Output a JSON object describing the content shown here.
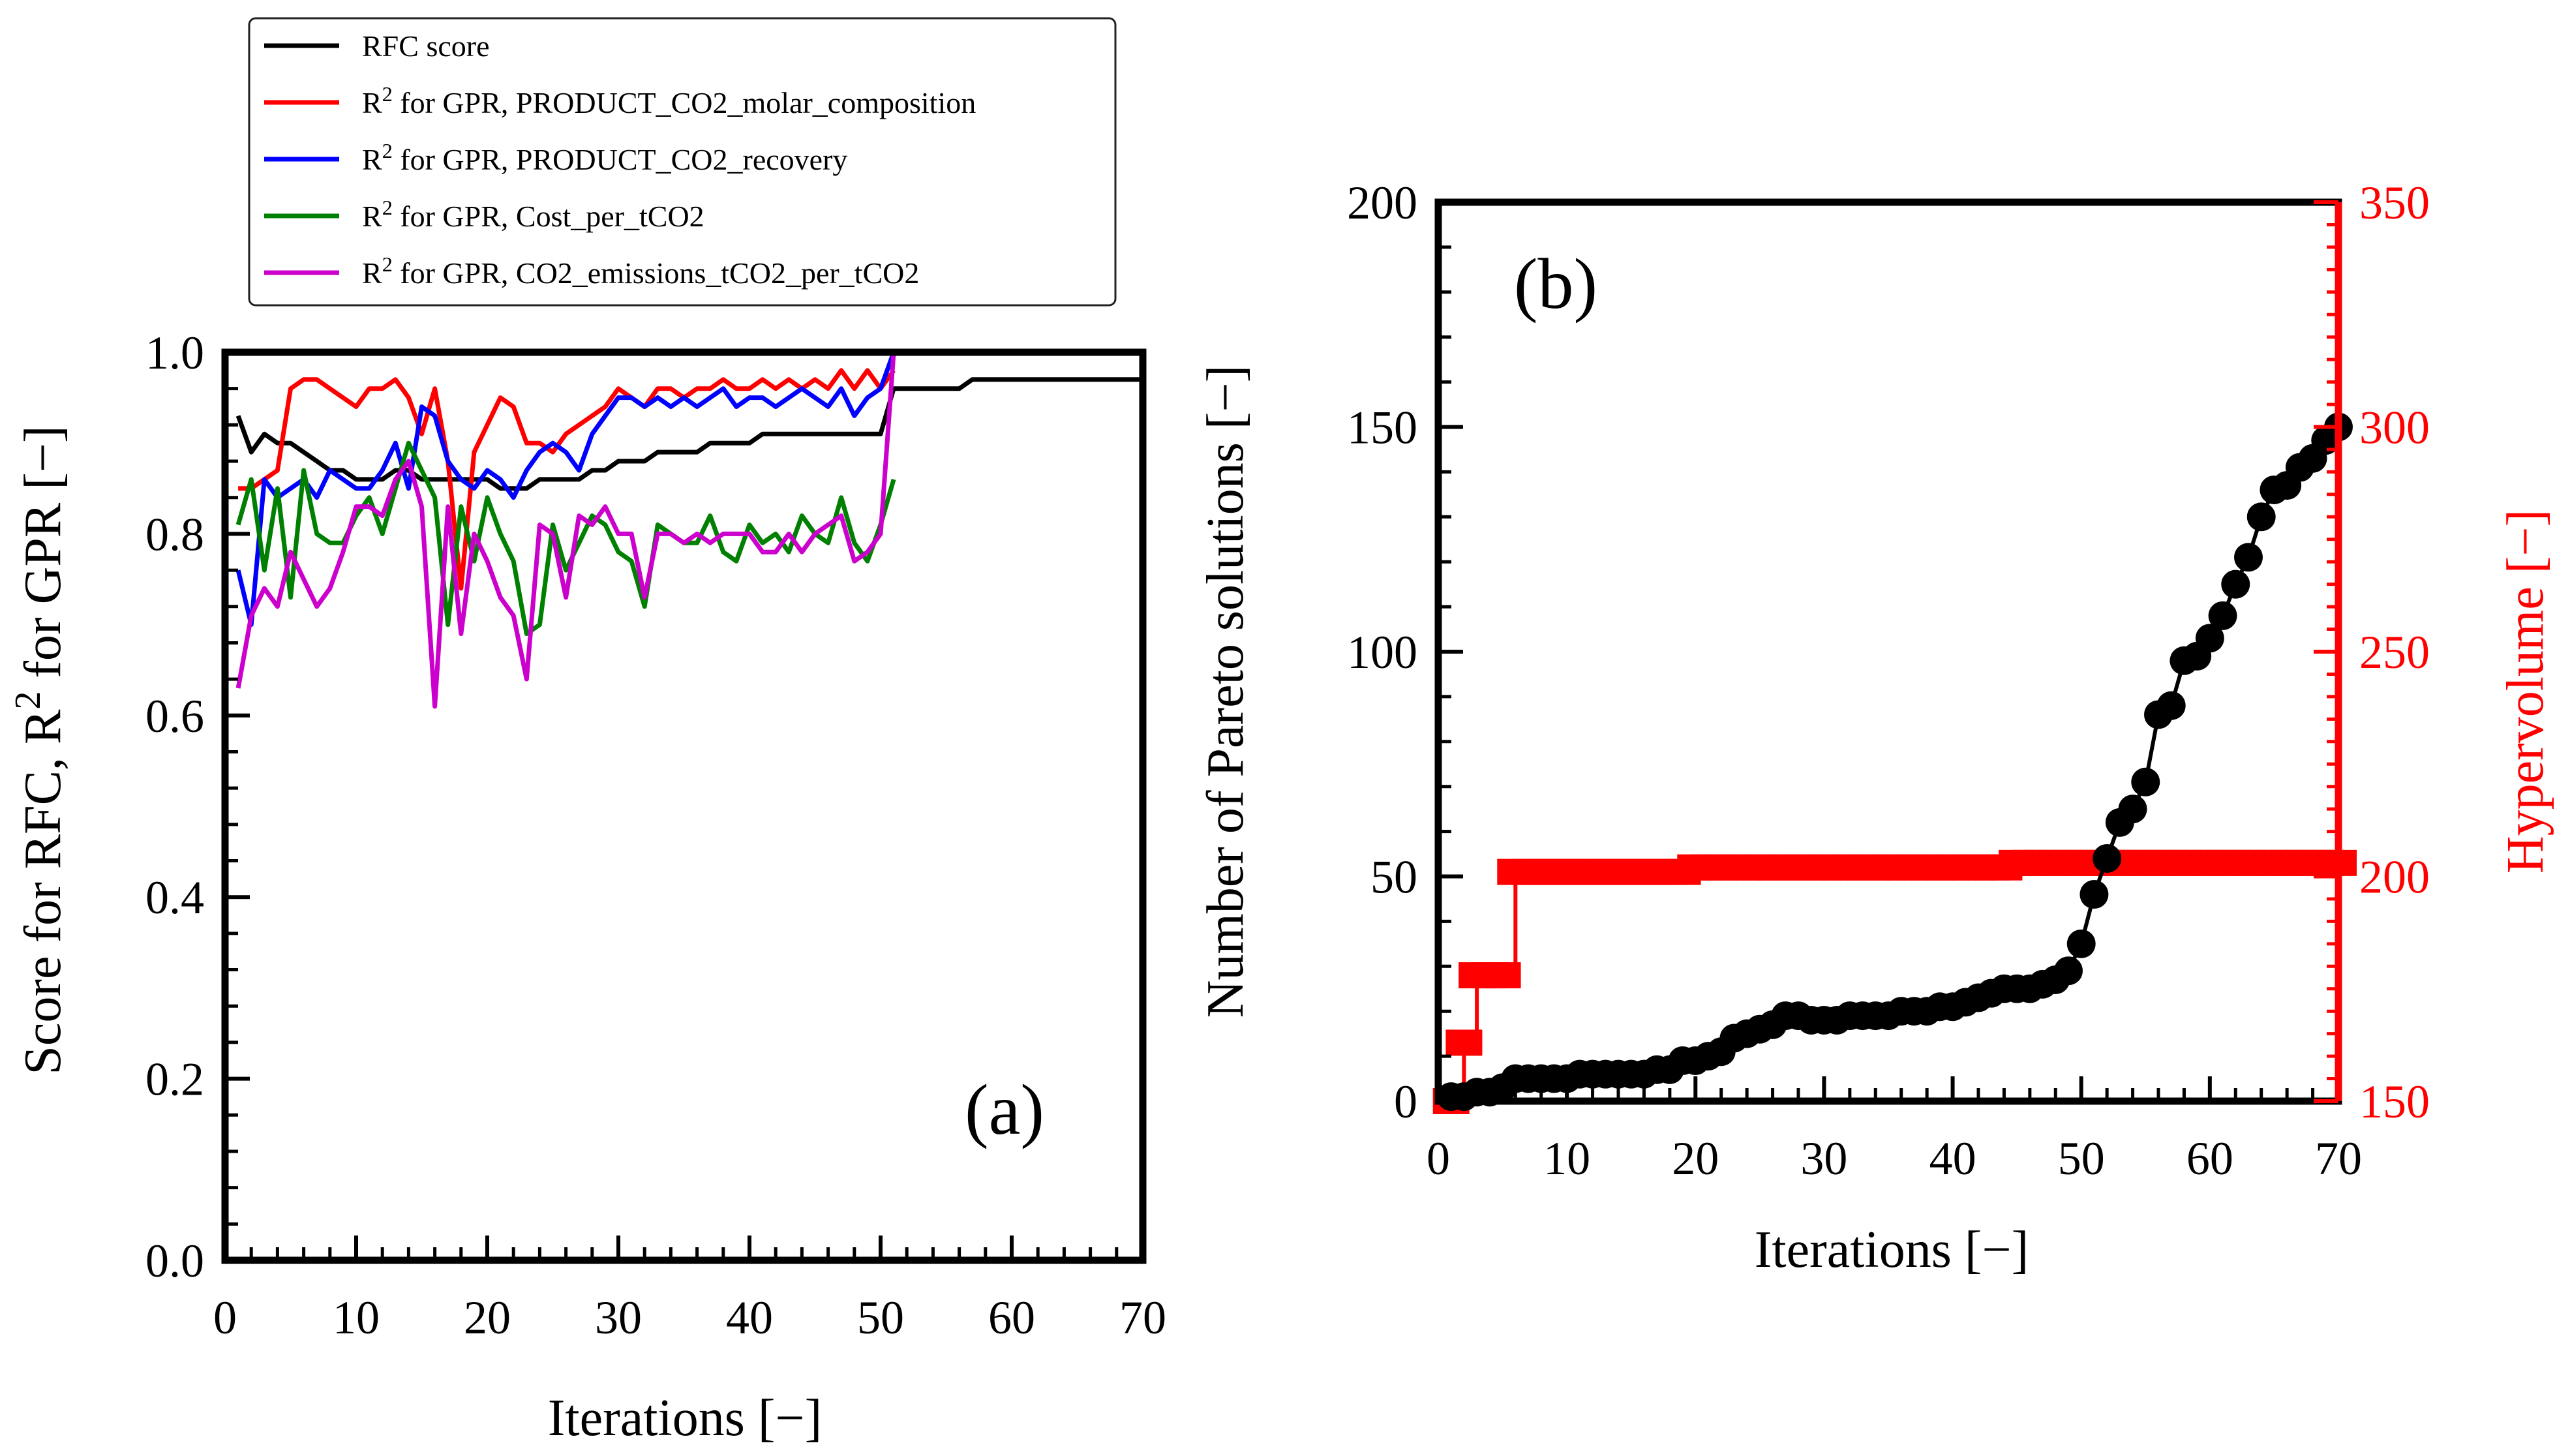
{
  "chart_data": [
    {
      "type": "line",
      "panel_label": "(a)",
      "xlabel": "Iterations [−]",
      "ylabel_parts": [
        "Score for RFC, R",
        "2",
        " for GPR [−]"
      ],
      "xlim": [
        0,
        70
      ],
      "ylim": [
        0,
        1
      ],
      "xticks": [
        0,
        10,
        20,
        30,
        40,
        50,
        60,
        70
      ],
      "xtick_labels": [
        "0",
        "10",
        "20",
        "30",
        "40",
        "50",
        "60",
        "70"
      ],
      "yticks": [
        0,
        0.2,
        0.4,
        0.6,
        0.8,
        1.0
      ],
      "ytick_labels": [
        "0.0",
        "0.2",
        "0.4",
        "0.6",
        "0.8",
        "1.0"
      ],
      "legend": {
        "placement": "top-left, above plot"
      },
      "series": [
        {
          "name": "RFC score",
          "legend_parts": [
            "RFC score"
          ],
          "color": "#000000",
          "x": [
            1,
            2,
            3,
            4,
            5,
            6,
            7,
            8,
            9,
            10,
            11,
            12,
            13,
            14,
            15,
            16,
            17,
            18,
            19,
            20,
            21,
            22,
            23,
            24,
            25,
            26,
            27,
            28,
            29,
            30,
            31,
            32,
            33,
            34,
            35,
            36,
            37,
            38,
            39,
            40,
            41,
            42,
            43,
            44,
            45,
            46,
            47,
            48,
            49,
            50,
            51,
            52,
            53,
            54,
            55,
            56,
            57,
            58,
            59,
            60,
            61,
            62,
            63,
            64,
            65,
            66,
            67,
            68,
            69,
            70
          ],
          "values": [
            0.93,
            0.89,
            0.91,
            0.9,
            0.9,
            0.89,
            0.88,
            0.87,
            0.87,
            0.86,
            0.86,
            0.86,
            0.87,
            0.87,
            0.86,
            0.86,
            0.86,
            0.86,
            0.86,
            0.86,
            0.85,
            0.85,
            0.85,
            0.86,
            0.86,
            0.86,
            0.86,
            0.87,
            0.87,
            0.88,
            0.88,
            0.88,
            0.89,
            0.89,
            0.89,
            0.89,
            0.9,
            0.9,
            0.9,
            0.9,
            0.91,
            0.91,
            0.91,
            0.91,
            0.91,
            0.91,
            0.91,
            0.91,
            0.91,
            0.91,
            0.96,
            0.96,
            0.96,
            0.96,
            0.96,
            0.96,
            0.97,
            0.97,
            0.97,
            0.97,
            0.97,
            0.97,
            0.97,
            0.97,
            0.97,
            0.97,
            0.97,
            0.97,
            0.97,
            0.97
          ]
        },
        {
          "name": "R2 for GPR, PRODUCT_CO2_molar_composition",
          "legend_parts": [
            "R",
            "2",
            " for GPR, PRODUCT_CO2_molar_composition"
          ],
          "color": "#ff0000",
          "x": [
            1,
            2,
            3,
            4,
            5,
            6,
            7,
            8,
            9,
            10,
            11,
            12,
            13,
            14,
            15,
            16,
            17,
            18,
            19,
            20,
            21,
            22,
            23,
            24,
            25,
            26,
            27,
            28,
            29,
            30,
            31,
            32,
            33,
            34,
            35,
            36,
            37,
            38,
            39,
            40,
            41,
            42,
            43,
            44,
            45,
            46,
            47,
            48,
            49,
            50,
            51
          ],
          "values": [
            0.85,
            0.85,
            0.86,
            0.87,
            0.96,
            0.97,
            0.97,
            0.96,
            0.95,
            0.94,
            0.96,
            0.96,
            0.97,
            0.95,
            0.91,
            0.96,
            0.88,
            0.74,
            0.89,
            0.92,
            0.95,
            0.94,
            0.9,
            0.9,
            0.89,
            0.91,
            0.92,
            0.93,
            0.94,
            0.96,
            0.95,
            0.94,
            0.96,
            0.96,
            0.95,
            0.96,
            0.96,
            0.97,
            0.96,
            0.96,
            0.97,
            0.96,
            0.97,
            0.96,
            0.97,
            0.96,
            0.98,
            0.96,
            0.98,
            0.96,
            0.98
          ]
        },
        {
          "name": "R2 for GPR, PRODUCT_CO2_recovery",
          "legend_parts": [
            "R",
            "2",
            " for GPR, PRODUCT_CO2_recovery"
          ],
          "color": "#0000ff",
          "x": [
            1,
            2,
            3,
            4,
            5,
            6,
            7,
            8,
            9,
            10,
            11,
            12,
            13,
            14,
            15,
            16,
            17,
            18,
            19,
            20,
            21,
            22,
            23,
            24,
            25,
            26,
            27,
            28,
            29,
            30,
            31,
            32,
            33,
            34,
            35,
            36,
            37,
            38,
            39,
            40,
            41,
            42,
            43,
            44,
            45,
            46,
            47,
            48,
            49,
            50,
            51
          ],
          "values": [
            0.76,
            0.7,
            0.86,
            0.84,
            0.85,
            0.86,
            0.84,
            0.87,
            0.86,
            0.85,
            0.85,
            0.87,
            0.9,
            0.85,
            0.94,
            0.93,
            0.88,
            0.86,
            0.85,
            0.87,
            0.86,
            0.84,
            0.87,
            0.89,
            0.9,
            0.89,
            0.87,
            0.91,
            0.93,
            0.95,
            0.95,
            0.94,
            0.95,
            0.94,
            0.95,
            0.94,
            0.95,
            0.96,
            0.94,
            0.95,
            0.95,
            0.94,
            0.95,
            0.96,
            0.95,
            0.94,
            0.96,
            0.93,
            0.95,
            0.96,
            1.0
          ]
        },
        {
          "name": "R2 for GPR, Cost_per_tCO2",
          "legend_parts": [
            "R",
            "2",
            " for GPR, Cost_per_tCO2"
          ],
          "color": "#008000",
          "x": [
            1,
            2,
            3,
            4,
            5,
            6,
            7,
            8,
            9,
            10,
            11,
            12,
            13,
            14,
            15,
            16,
            17,
            18,
            19,
            20,
            21,
            22,
            23,
            24,
            25,
            26,
            27,
            28,
            29,
            30,
            31,
            32,
            33,
            34,
            35,
            36,
            37,
            38,
            39,
            40,
            41,
            42,
            43,
            44,
            45,
            46,
            47,
            48,
            49,
            50,
            51
          ],
          "values": [
            0.81,
            0.86,
            0.76,
            0.85,
            0.73,
            0.87,
            0.8,
            0.79,
            0.79,
            0.82,
            0.84,
            0.8,
            0.85,
            0.9,
            0.87,
            0.84,
            0.7,
            0.83,
            0.77,
            0.84,
            0.8,
            0.77,
            0.69,
            0.7,
            0.81,
            0.76,
            0.79,
            0.82,
            0.81,
            0.78,
            0.77,
            0.72,
            0.81,
            0.8,
            0.79,
            0.79,
            0.82,
            0.78,
            0.77,
            0.81,
            0.79,
            0.8,
            0.78,
            0.82,
            0.8,
            0.79,
            0.84,
            0.79,
            0.77,
            0.81,
            0.86
          ]
        },
        {
          "name": "R2 for GPR, CO2_emissions_tCO2_per_tCO2",
          "legend_parts": [
            "R",
            "2",
            " for GPR, CO2_emissions_tCO2_per_tCO2"
          ],
          "color": "#cc00cc",
          "x": [
            1,
            2,
            3,
            4,
            5,
            6,
            7,
            8,
            9,
            10,
            11,
            12,
            13,
            14,
            15,
            16,
            17,
            18,
            19,
            20,
            21,
            22,
            23,
            24,
            25,
            26,
            27,
            28,
            29,
            30,
            31,
            32,
            33,
            34,
            35,
            36,
            37,
            38,
            39,
            40,
            41,
            42,
            43,
            44,
            45,
            46,
            47,
            48,
            49,
            50,
            51
          ],
          "values": [
            0.63,
            0.71,
            0.74,
            0.72,
            0.78,
            0.75,
            0.72,
            0.74,
            0.78,
            0.83,
            0.83,
            0.82,
            0.86,
            0.88,
            0.83,
            0.61,
            0.83,
            0.69,
            0.8,
            0.77,
            0.73,
            0.71,
            0.64,
            0.81,
            0.8,
            0.73,
            0.82,
            0.81,
            0.83,
            0.8,
            0.8,
            0.73,
            0.8,
            0.8,
            0.79,
            0.8,
            0.79,
            0.8,
            0.8,
            0.8,
            0.78,
            0.78,
            0.8,
            0.78,
            0.8,
            0.81,
            0.82,
            0.77,
            0.78,
            0.8,
            1.0
          ]
        }
      ]
    },
    {
      "type": "scatter",
      "panel_label": "(b)",
      "xlabel": "Iterations [−]",
      "ylabel": "Number of Pareto solutions [−]",
      "y2label": "Hypervolume [−]",
      "xlim": [
        0,
        70
      ],
      "ylim": [
        0,
        200
      ],
      "y2lim": [
        150,
        350
      ],
      "xticks": [
        0,
        10,
        20,
        30,
        40,
        50,
        60,
        70
      ],
      "xtick_labels": [
        "0",
        "10",
        "20",
        "30",
        "40",
        "50",
        "60",
        "70"
      ],
      "yticks": [
        0,
        50,
        100,
        150,
        200
      ],
      "ytick_labels": [
        "0",
        "50",
        "100",
        "150",
        "200"
      ],
      "y2ticks": [
        150,
        200,
        250,
        300,
        350
      ],
      "y2tick_labels": [
        "150",
        "200",
        "250",
        "300",
        "350"
      ],
      "colors": {
        "pareto": "#000000",
        "hypervolume": "#ff0000"
      },
      "series": [
        {
          "axis": "left",
          "color": "#000000",
          "x": [
            1,
            2,
            3,
            4,
            5,
            6,
            7,
            8,
            9,
            10,
            11,
            12,
            13,
            14,
            15,
            16,
            17,
            18,
            19,
            20,
            21,
            22,
            23,
            24,
            25,
            26,
            27,
            28,
            29,
            30,
            31,
            32,
            33,
            34,
            35,
            36,
            37,
            38,
            39,
            40,
            41,
            42,
            43,
            44,
            45,
            46,
            47,
            48,
            49,
            50,
            51,
            52,
            53,
            54,
            55,
            56,
            57,
            58,
            59,
            60,
            61,
            62,
            63,
            64,
            65,
            66,
            67,
            68,
            69,
            70
          ],
          "values": [
            1,
            1,
            2,
            2,
            3,
            5,
            5,
            5,
            5,
            5,
            6,
            6,
            6,
            6,
            6,
            6,
            7,
            7,
            9,
            9,
            10,
            11,
            14,
            15,
            16,
            17,
            19,
            19,
            18,
            18,
            18,
            19,
            19,
            19,
            19,
            20,
            20,
            20,
            21,
            21,
            22,
            23,
            24,
            25,
            25,
            25,
            26,
            27,
            29,
            35,
            46,
            54,
            62,
            65,
            71,
            86,
            88,
            98,
            99,
            103,
            108,
            115,
            121,
            130,
            136,
            137,
            141,
            143,
            147,
            150
          ]
        },
        {
          "axis": "right",
          "color": "#ff0000",
          "x": [
            1,
            2,
            3,
            4,
            5,
            6,
            7,
            8,
            9,
            10,
            11,
            12,
            13,
            14,
            15,
            16,
            17,
            18,
            19,
            20,
            21,
            22,
            23,
            24,
            25,
            26,
            27,
            28,
            29,
            30,
            31,
            32,
            33,
            34,
            35,
            36,
            37,
            38,
            39,
            40,
            41,
            42,
            43,
            44,
            45,
            46,
            47,
            48,
            49,
            50,
            51,
            52,
            53,
            54,
            55,
            56,
            57,
            58,
            59,
            60,
            61,
            62,
            63,
            64,
            65,
            66,
            67,
            68,
            69,
            70
          ],
          "values": [
            150,
            163,
            178,
            178,
            178,
            201,
            201,
            201,
            201,
            201,
            201,
            201,
            201,
            201,
            201,
            201,
            201,
            201,
            201,
            202,
            202,
            202,
            202,
            202,
            202,
            202,
            202,
            202,
            202,
            202,
            202,
            202,
            202,
            202,
            202,
            202,
            202,
            202,
            202,
            202,
            202,
            202,
            202,
            202,
            203,
            203,
            203,
            203,
            203,
            203,
            203,
            203,
            203,
            203,
            203,
            203,
            203,
            203,
            203,
            203,
            203,
            203,
            203,
            203,
            203,
            203,
            203,
            203,
            203,
            203
          ]
        }
      ]
    }
  ]
}
